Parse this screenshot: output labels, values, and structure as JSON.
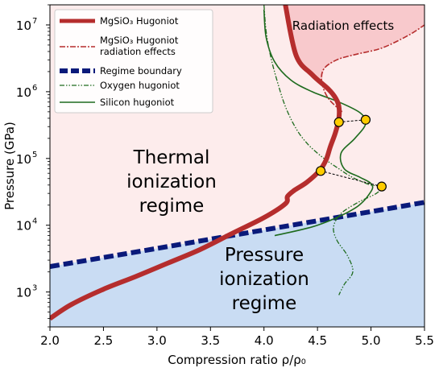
{
  "chart_data": {
    "type": "line",
    "title": "",
    "xlabel": "Compression ratio ρ/ρ₀",
    "ylabel": "Pressure (GPa)",
    "xlim": [
      2.0,
      5.5
    ],
    "ylim": [
      300,
      20000000
    ],
    "yscale": "log",
    "x_ticks": [
      "2.0",
      "2.5",
      "3.0",
      "3.5",
      "4.0",
      "4.5",
      "5.0",
      "5.5"
    ],
    "y_ticks": [
      {
        "base": "10",
        "exp": "3"
      },
      {
        "base": "10",
        "exp": "4"
      },
      {
        "base": "10",
        "exp": "5"
      },
      {
        "base": "10",
        "exp": "6"
      },
      {
        "base": "10",
        "exp": "7"
      }
    ],
    "colors": {
      "thermal_region": "#fdecec",
      "pressure_region": "#c9dcf3",
      "radiation_region": "#f8c9cc",
      "hugoniot": "#b52d2d",
      "hugoniot_radiation": "#b52d2d",
      "regime_boundary": "#0a1a7a",
      "oxygen": "#1e6b1e",
      "silicon": "#1e6b1e",
      "marker_fill": "#ffcc00",
      "marker_edge": "#000000"
    },
    "region_labels": {
      "radiation": "Radiation effects",
      "thermal": [
        "Thermal",
        "ionization",
        "regime"
      ],
      "pressure": [
        "Pressure",
        "ionization",
        "regime"
      ]
    },
    "legend": {
      "position": "top-left",
      "entries": [
        {
          "label": "MgSiO₃ Hugoniot",
          "style": "thick-solid"
        },
        {
          "label": "MgSiO₃ Hugoniot",
          "label2": "radiation effects",
          "style": "dash-dot"
        },
        {
          "label": "Regime boundary",
          "style": "thick-dashed"
        },
        {
          "label": "Oxygen hugoniot",
          "style": "dash-dot-dot"
        },
        {
          "label": "Silicon hugoniot",
          "style": "solid-thin"
        }
      ]
    },
    "series": [
      {
        "name": "MgSiO₃ Hugoniot",
        "x": [
          2.0,
          2.2,
          2.5,
          2.8,
          3.1,
          3.4,
          3.7,
          4.0,
          4.2,
          4.22,
          4.28,
          4.4,
          4.52,
          4.58,
          4.62,
          4.67,
          4.7,
          4.7,
          4.67,
          4.6,
          4.45,
          4.3,
          4.2
        ],
        "y": [
          400,
          650,
          1100,
          1700,
          2700,
          4300,
          7500,
          13000,
          21000,
          27000,
          33000,
          44000,
          66000,
          95000,
          150000,
          250000,
          400000,
          600000,
          800000,
          1100000,
          1800000,
          3500000,
          20000000
        ]
      },
      {
        "name": "MgSiO₃ Hugoniot radiation effects",
        "x": [
          4.73,
          4.6,
          4.54,
          4.56,
          4.68,
          4.85,
          5.1,
          5.35,
          5.5
        ],
        "y": [
          500000,
          800000,
          1400000,
          2200000,
          3000000,
          3600000,
          4500000,
          7000000,
          10000000
        ]
      },
      {
        "name": "Regime boundary",
        "x": [
          2.0,
          3.0,
          4.0,
          5.0,
          5.5
        ],
        "y": [
          2400,
          4500,
          8500,
          16000,
          22000
        ]
      },
      {
        "name": "Oxygen hugoniot",
        "x": [
          4.0,
          4.02,
          4.06,
          4.12,
          4.2,
          4.3,
          4.4,
          4.5,
          4.6,
          4.7,
          4.8,
          4.9,
          5.0,
          5.1,
          5.05,
          4.88,
          4.72,
          4.65,
          4.68,
          4.78,
          4.83,
          4.75,
          4.7
        ],
        "y": [
          20000000,
          8000000,
          3500000,
          1500000,
          600000,
          280000,
          170000,
          120000,
          90000,
          70000,
          55000,
          46000,
          40000,
          38000,
          30000,
          22000,
          15000,
          9500,
          6000,
          3500,
          2000,
          1300,
          900
        ]
      },
      {
        "name": "Silicon hugoniot",
        "x": [
          4.0,
          4.02,
          4.1,
          4.25,
          4.45,
          4.7,
          4.9,
          4.95,
          4.85,
          4.72,
          4.75,
          4.9,
          5.0,
          5.0,
          4.85,
          4.5,
          4.1
        ],
        "y": [
          17000000,
          6500000,
          2800000,
          1500000,
          1000000,
          700000,
          480000,
          330000,
          200000,
          120000,
          70000,
          52000,
          42000,
          32000,
          18000,
          10000,
          7000
        ]
      }
    ],
    "connectors": [
      {
        "from": [
          4.7,
          350000
        ],
        "to": [
          4.95,
          380000
        ]
      },
      {
        "from": [
          4.53,
          65000
        ],
        "to": [
          5.1,
          38000
        ]
      }
    ],
    "markers": [
      {
        "x": 4.7,
        "y": 350000
      },
      {
        "x": 4.95,
        "y": 380000
      },
      {
        "x": 4.53,
        "y": 65000
      },
      {
        "x": 5.1,
        "y": 38000
      }
    ]
  }
}
